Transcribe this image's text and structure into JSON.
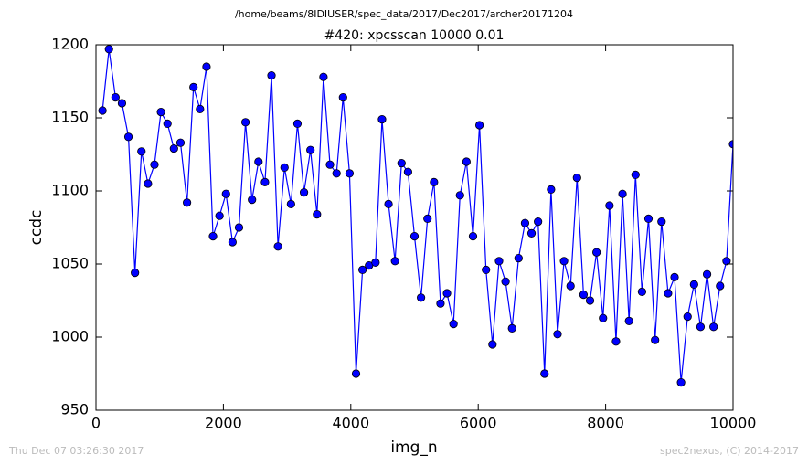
{
  "chart_data": {
    "type": "line",
    "path_title": "/home/beams/8IDIUSER/spec_data/2017/Dec2017/archer20171204",
    "title": "#420: xpcsscan 10000 0.01",
    "x_label": "img_n",
    "y_label": "ccdc",
    "footer_left": "Thu Dec 07 03:26:30 2017",
    "footer_right": "spec2nexus, (C) 2014-2017",
    "color": "#0000ff",
    "grid": false,
    "xlim": [
      0,
      10000
    ],
    "xticks": [
      0,
      2000,
      4000,
      6000,
      8000,
      10000
    ],
    "ylim": [
      950,
      1200
    ],
    "yticks": [
      950,
      1000,
      1050,
      1100,
      1150,
      1200
    ],
    "x": [
      102,
      204,
      306,
      408,
      510,
      612,
      714,
      816,
      918,
      1020,
      1122,
      1224,
      1327,
      1429,
      1531,
      1633,
      1735,
      1837,
      1939,
      2041,
      2143,
      2245,
      2347,
      2449,
      2551,
      2653,
      2755,
      2857,
      2959,
      3061,
      3163,
      3265,
      3367,
      3469,
      3571,
      3673,
      3776,
      3878,
      3980,
      4082,
      4184,
      4286,
      4388,
      4490,
      4592,
      4694,
      4796,
      4898,
      5000,
      5102,
      5204,
      5306,
      5408,
      5510,
      5612,
      5714,
      5816,
      5918,
      6020,
      6122,
      6224,
      6327,
      6429,
      6531,
      6633,
      6735,
      6837,
      6939,
      7041,
      7143,
      7245,
      7347,
      7449,
      7551,
      7653,
      7755,
      7857,
      7959,
      8061,
      8163,
      8265,
      8367,
      8469,
      8571,
      8673,
      8776,
      8878,
      8980,
      9082,
      9184,
      9286,
      9388,
      9490,
      9592,
      9694,
      9796,
      9898,
      10000
    ],
    "values": [
      1155,
      1197,
      1164,
      1160,
      1137,
      1044,
      1127,
      1105,
      1118,
      1154,
      1146,
      1129,
      1133,
      1092,
      1171,
      1156,
      1185,
      1069,
      1083,
      1098,
      1065,
      1075,
      1147,
      1094,
      1120,
      1106,
      1179,
      1062,
      1116,
      1091,
      1146,
      1099,
      1128,
      1084,
      1178,
      1118,
      1112,
      1164,
      1112,
      975,
      1046,
      1049,
      1051,
      1149,
      1091,
      1052,
      1119,
      1113,
      1069,
      1027,
      1081,
      1106,
      1023,
      1030,
      1009,
      1097,
      1120,
      1069,
      1145,
      1046,
      995,
      1052,
      1038,
      1006,
      1054,
      1078,
      1071,
      1079,
      975,
      1101,
      1002,
      1052,
      1035,
      1109,
      1029,
      1025,
      1058,
      1013,
      1090,
      997,
      1098,
      1011,
      1111,
      1031,
      1081,
      998,
      1079,
      1030,
      1041,
      969,
      1014,
      1036,
      1007,
      1043,
      1007,
      1035,
      1052,
      1132
    ]
  }
}
